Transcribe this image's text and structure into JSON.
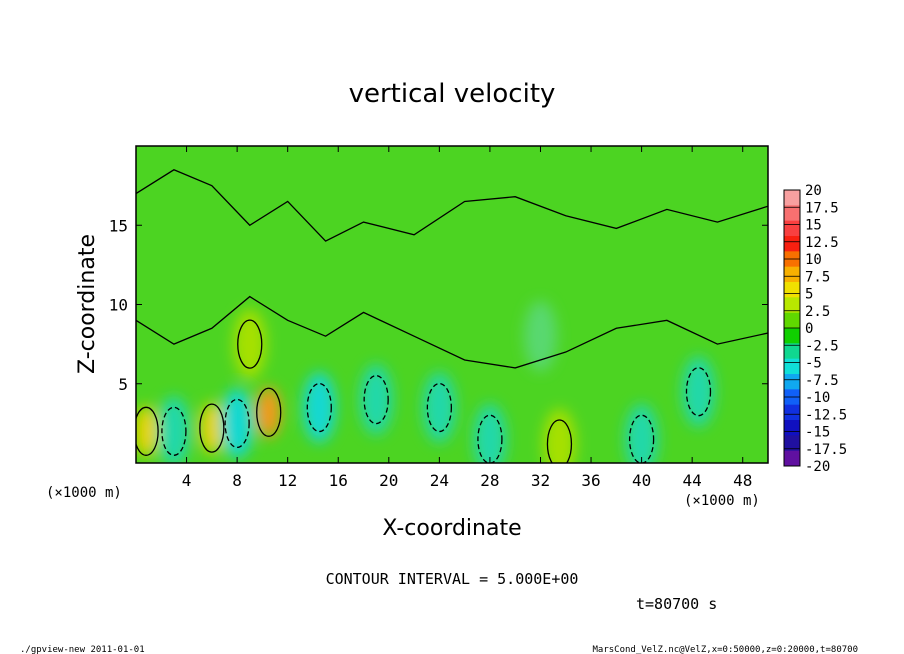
{
  "chart_data": {
    "type": "heatmap",
    "title": "vertical velocity",
    "xlabel": "X-coordinate",
    "ylabel": "Z-coordinate",
    "x_unit": "(×1000 m)",
    "y_unit": "(×1000 m)",
    "xlim": [
      0,
      50
    ],
    "ylim": [
      0,
      20
    ],
    "x_ticks": [
      "4",
      "8",
      "12",
      "16",
      "20",
      "24",
      "28",
      "32",
      "36",
      "40",
      "44",
      "48"
    ],
    "y_ticks": [
      "5",
      "10",
      "15"
    ],
    "colorbar_labels": [
      "20",
      "17.5",
      "15",
      "12.5",
      "10",
      "7.5",
      "5",
      "2.5",
      "0",
      "-2.5",
      "-5",
      "-7.5",
      "-10",
      "-12.5",
      "-15",
      "-17.5",
      "-20"
    ],
    "colorbar_colors": [
      "#f8a0a0",
      "#f87070",
      "#f84040",
      "#f82010",
      "#f87000",
      "#f8b000",
      "#f0e000",
      "#b8e800",
      "#60d800",
      "#10d000",
      "#10d890",
      "#10e0d8",
      "#10a8f0",
      "#1060f8",
      "#1030e0",
      "#1010c0",
      "#2010a0",
      "#6010a0"
    ],
    "contour_interval_text": "CONTOUR INTERVAL = 5.000E+00",
    "time_text": "t=80700 s",
    "field_description": "Mostly weak vertical velocity (-2.5 to 2.5) over the domain; updraft maxima of about 5-7.5 near x≈10 km, z≈2-4 km and smaller positive cells near x≈1, 6 and 33 km; downdraft pockets of about -2.5 to -5 in the lower levels between x≈2 and x≈44 km.",
    "cells": [
      {
        "x": 10.5,
        "z": 3.2,
        "w": 7.5
      },
      {
        "x": 6.0,
        "z": 2.2,
        "w": 5.5
      },
      {
        "x": 0.8,
        "z": 2.0,
        "w": 5.0
      },
      {
        "x": 33.5,
        "z": 1.2,
        "w": 4.0
      },
      {
        "x": 9.0,
        "z": 7.5,
        "w": 3.0
      },
      {
        "x": 3.0,
        "z": 2.0,
        "w": -3.5
      },
      {
        "x": 8.0,
        "z": 2.5,
        "w": -4.5
      },
      {
        "x": 14.5,
        "z": 3.5,
        "w": -4.0
      },
      {
        "x": 19.0,
        "z": 4.0,
        "w": -2.5
      },
      {
        "x": 24.0,
        "z": 3.5,
        "w": -2.5
      },
      {
        "x": 28.0,
        "z": 1.5,
        "w": -3.0
      },
      {
        "x": 40.0,
        "z": 1.5,
        "w": -2.5
      },
      {
        "x": 44.5,
        "z": 4.5,
        "w": -3.0
      },
      {
        "x": 32.0,
        "z": 8.0,
        "w": -2.0
      }
    ]
  },
  "footer": {
    "left": "./gpview-new  2011-01-01",
    "right": "MarsCond_VelZ.nc@VelZ,x=0:50000,z=0:20000,t=80700"
  }
}
